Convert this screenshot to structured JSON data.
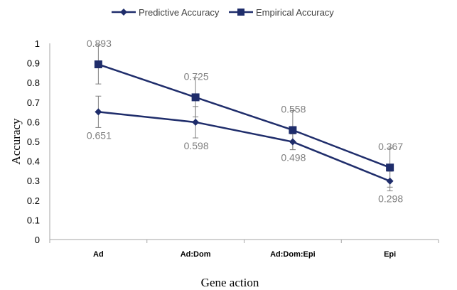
{
  "chart_data": {
    "type": "line",
    "title": "",
    "xlabel": "Gene action",
    "ylabel": "Accuracy",
    "categories": [
      "Ad",
      "Ad:Dom",
      "Ad:Dom:Epi",
      "Epi"
    ],
    "ylim": [
      0,
      1
    ],
    "yticks": [
      "0",
      "0.1",
      "0.2",
      "0.3",
      "0.4",
      "0.5",
      "0.6",
      "0.7",
      "0.8",
      "0.9",
      "1"
    ],
    "grid": false,
    "legend_position": "top-center",
    "series": [
      {
        "name": "Predictive Accuracy",
        "marker": "diamond",
        "color": "#1f2d6b",
        "values": [
          0.651,
          0.598,
          0.498,
          0.298
        ],
        "labels": [
          "0.651",
          "0.598",
          "0.498",
          "0.298"
        ],
        "error": [
          0.08,
          0.08,
          0.04,
          0.05
        ],
        "label_side": "below"
      },
      {
        "name": "Empirical Accuracy",
        "marker": "square",
        "color": "#1f2d6b",
        "values": [
          0.893,
          0.725,
          0.558,
          0.367
        ],
        "labels": [
          "0.893",
          "0.725",
          "0.558",
          "0.367"
        ],
        "error": [
          0.1,
          0.1,
          0.1,
          0.1
        ],
        "label_side": "above"
      }
    ]
  }
}
